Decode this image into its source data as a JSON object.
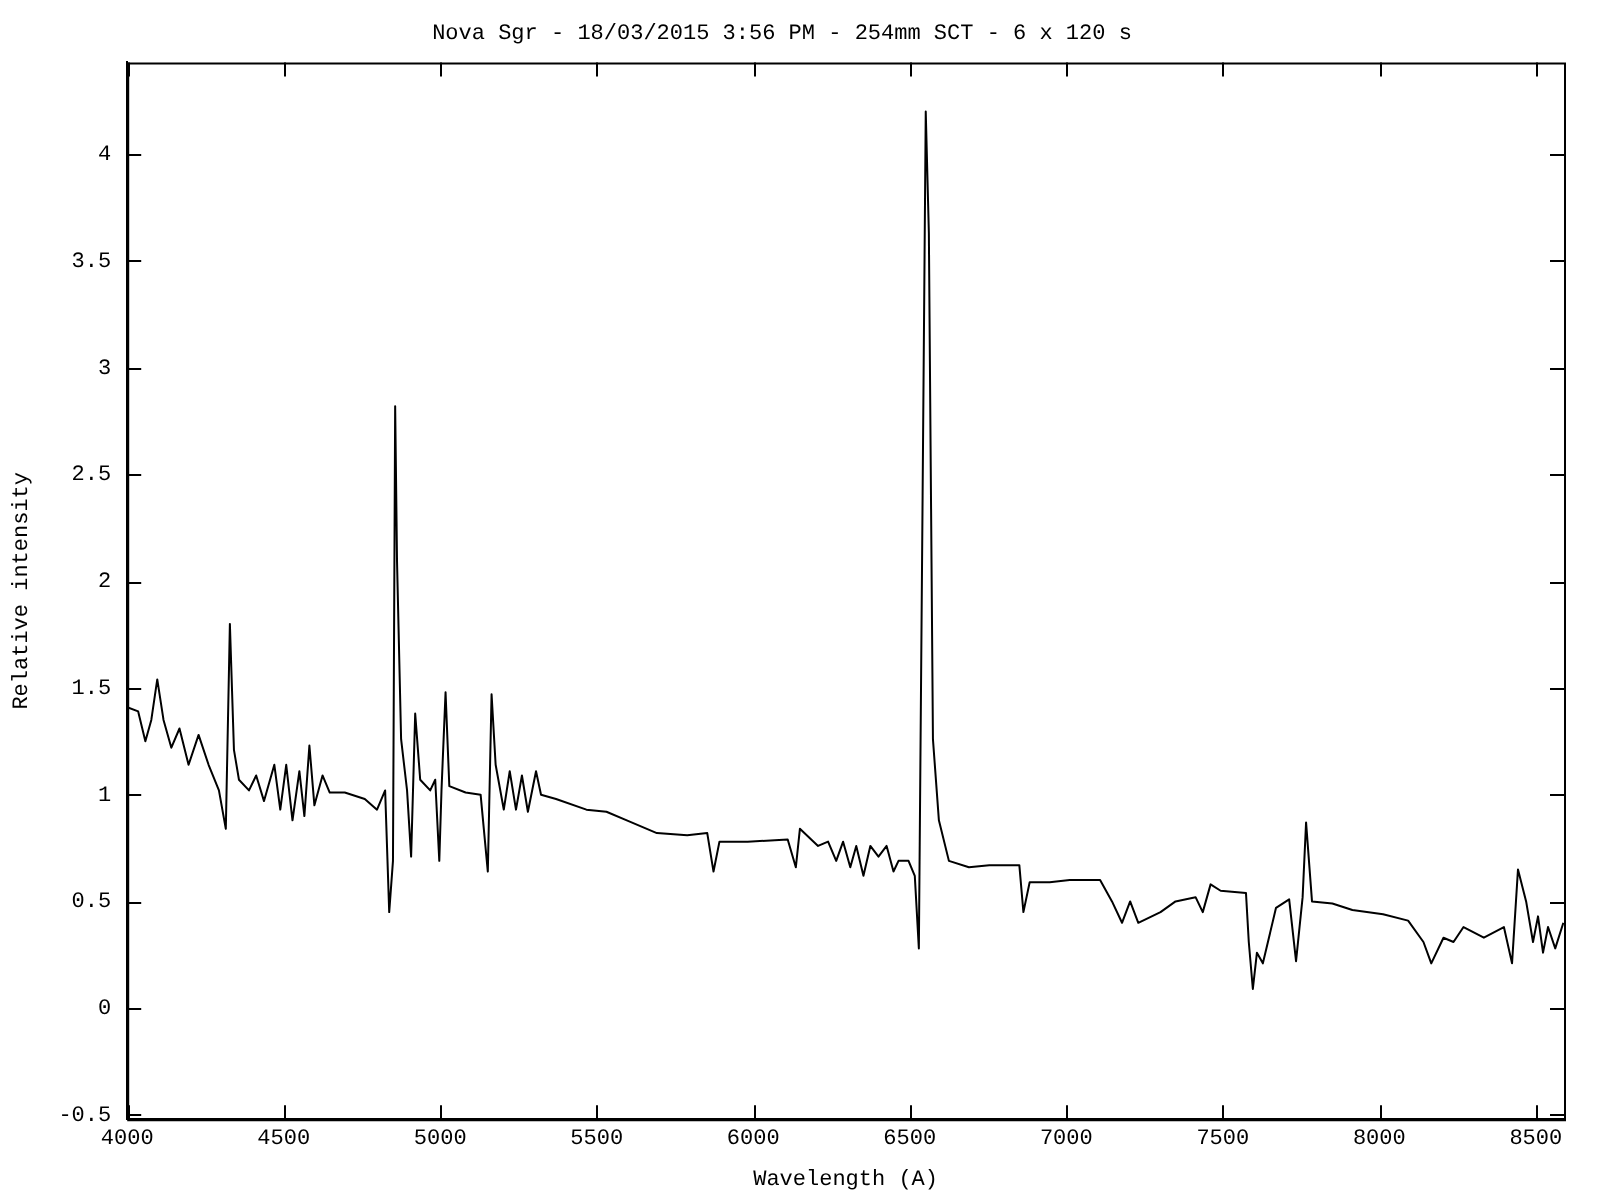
{
  "chart_data": {
    "type": "line",
    "title": "Nova Sgr - 18/03/2015 3:56 PM - 254mm SCT - 6 x 120 s",
    "xlabel": "Wavelength (A)",
    "ylabel": "Relative intensity",
    "xlim": [
      4000,
      8590
    ],
    "xticks": [
      4000,
      4500,
      5000,
      5500,
      6000,
      6500,
      7000,
      7500,
      8000,
      8500
    ],
    "ylim": [
      -0.52,
      4.43
    ],
    "yticks": [
      -0.5,
      0,
      0.5,
      1,
      1.5,
      2,
      2.5,
      3,
      3.5,
      4
    ],
    "grid": false,
    "legend": false,
    "marker": "none",
    "line_style": "solid",
    "series": [
      {
        "color": "#000000",
        "x": [
          4000,
          4035,
          4058,
          4077,
          4096,
          4116,
          4141,
          4167,
          4196,
          4228,
          4260,
          4293,
          4315,
          4328,
          4341,
          4357,
          4389,
          4412,
          4437,
          4470,
          4489,
          4508,
          4528,
          4550,
          4566,
          4582,
          4598,
          4624,
          4647,
          4695,
          4759,
          4798,
          4824,
          4837,
          4849,
          4856,
          4862,
          4875,
          4894,
          4907,
          4920,
          4936,
          4968,
          4984,
          4997,
          5004,
          5017,
          5029,
          5081,
          5129,
          5152,
          5164,
          5177,
          5203,
          5222,
          5242,
          5261,
          5280,
          5306,
          5322,
          5370,
          5467,
          5531,
          5596,
          5692,
          5789,
          5853,
          5873,
          5892,
          5982,
          6110,
          6136,
          6149,
          6207,
          6239,
          6265,
          6287,
          6310,
          6329,
          6352,
          6374,
          6400,
          6426,
          6448,
          6464,
          6496,
          6516,
          6529,
          6541,
          6551,
          6561,
          6574,
          6593,
          6625,
          6689,
          6754,
          6850,
          6863,
          6883,
          6947,
          7011,
          7108,
          7146,
          7178,
          7204,
          7230,
          7301,
          7349,
          7413,
          7436,
          7461,
          7493,
          7574,
          7583,
          7596,
          7609,
          7628,
          7670,
          7712,
          7734,
          7755,
          7766,
          7785,
          7850,
          7914,
          8012,
          8092,
          8141,
          8166,
          8205,
          8237,
          8269,
          8334,
          8398,
          8424,
          8443,
          8469,
          8491,
          8507,
          8523,
          8539,
          8562,
          8588
        ],
        "values": [
          1.41,
          1.39,
          1.25,
          1.35,
          1.54,
          1.35,
          1.22,
          1.31,
          1.14,
          1.28,
          1.14,
          1.02,
          0.84,
          1.8,
          1.21,
          1.07,
          1.02,
          1.09,
          0.97,
          1.14,
          0.93,
          1.14,
          0.88,
          1.11,
          0.9,
          1.23,
          0.95,
          1.09,
          1.01,
          1.01,
          0.98,
          0.93,
          1.02,
          0.45,
          0.69,
          2.82,
          2.09,
          1.26,
          1.02,
          0.71,
          1.38,
          1.07,
          1.02,
          1.07,
          0.69,
          1.02,
          1.48,
          1.04,
          1.01,
          1,
          0.64,
          1.47,
          1.14,
          0.93,
          1.11,
          0.93,
          1.09,
          0.92,
          1.11,
          1,
          0.98,
          0.93,
          0.92,
          0.88,
          0.82,
          0.81,
          0.82,
          0.64,
          0.78,
          0.78,
          0.79,
          0.66,
          0.84,
          0.76,
          0.78,
          0.69,
          0.78,
          0.66,
          0.76,
          0.62,
          0.76,
          0.71,
          0.76,
          0.64,
          0.69,
          0.69,
          0.62,
          0.28,
          2.4,
          4.2,
          3.63,
          1.26,
          0.88,
          0.69,
          0.66,
          0.67,
          0.67,
          0.45,
          0.59,
          0.59,
          0.6,
          0.6,
          0.5,
          0.4,
          0.5,
          0.4,
          0.45,
          0.5,
          0.52,
          0.45,
          0.58,
          0.55,
          0.54,
          0.31,
          0.09,
          0.26,
          0.21,
          0.47,
          0.51,
          0.22,
          0.52,
          0.87,
          0.5,
          0.49,
          0.46,
          0.44,
          0.41,
          0.31,
          0.21,
          0.33,
          0.31,
          0.38,
          0.33,
          0.38,
          0.21,
          0.65,
          0.5,
          0.31,
          0.43,
          0.26,
          0.38,
          0.28,
          0.4
        ]
      }
    ]
  }
}
